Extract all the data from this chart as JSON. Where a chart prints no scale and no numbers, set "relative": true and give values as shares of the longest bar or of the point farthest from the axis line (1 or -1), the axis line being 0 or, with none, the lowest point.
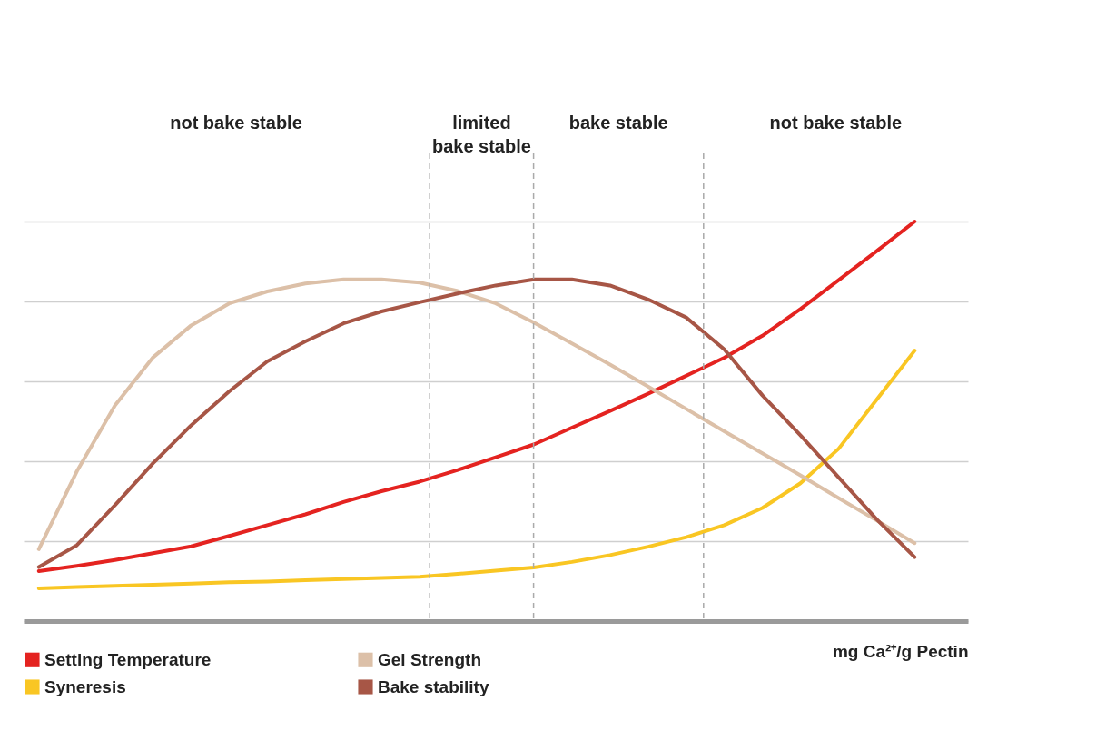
{
  "chart_data": {
    "type": "line",
    "relative": true,
    "xlabel": "mg Ca²⁺/g Pectin",
    "grid": "y",
    "legend": "bottom",
    "line_style": "solid",
    "marker": "none",
    "categories": [
      null,
      null,
      null,
      null,
      null,
      null,
      null,
      null,
      null,
      null,
      null,
      null,
      null,
      null,
      null,
      null,
      null,
      null,
      null,
      null,
      null,
      null,
      null,
      null,
      null
    ],
    "annotations": [
      "not bake stable",
      "limited bake stable",
      "bake stable",
      "not bake stable"
    ],
    "series": [
      {
        "name": "Setting Temperature",
        "color": "#e42320",
        "values": [
          0.125,
          0.138,
          0.153,
          0.17,
          0.187,
          0.213,
          0.24,
          0.267,
          0.298,
          0.325,
          0.349,
          0.378,
          0.41,
          0.442,
          0.484,
          0.526,
          0.569,
          0.614,
          0.659,
          0.714,
          0.781,
          0.853,
          0.926,
          1,
          null
        ]
      },
      {
        "name": "Syneresis",
        "color": "#f9c623",
        "values": [
          0.082,
          0.085,
          0.088,
          0.091,
          0.094,
          0.097,
          0.099,
          0.102,
          0.105,
          0.108,
          0.111,
          0.118,
          0.126,
          0.134,
          0.148,
          0.165,
          0.186,
          0.21,
          0.24,
          0.283,
          0.345,
          0.431,
          0.554,
          0.677,
          null
        ]
      },
      {
        "name": "Gel Strength",
        "color": "#dcc0a8",
        "values": [
          0.18,
          0.375,
          0.54,
          0.66,
          0.74,
          0.795,
          0.825,
          0.845,
          0.855,
          0.855,
          0.847,
          0.826,
          0.795,
          0.747,
          0.695,
          0.642,
          0.587,
          0.531,
          0.475,
          0.42,
          0.365,
          0.308,
          0.252,
          0.195,
          null
        ]
      },
      {
        "name": "Bake stability",
        "color": "#a75646",
        "values": [
          0.135,
          0.19,
          0.29,
          0.395,
          0.49,
          0.575,
          0.65,
          0.7,
          0.745,
          0.775,
          0.798,
          0.82,
          0.84,
          0.855,
          0.855,
          0.84,
          0.805,
          0.76,
          0.68,
          0.565,
          0.465,
          0.36,
          0.255,
          0.16,
          null
        ]
      }
    ]
  }
}
